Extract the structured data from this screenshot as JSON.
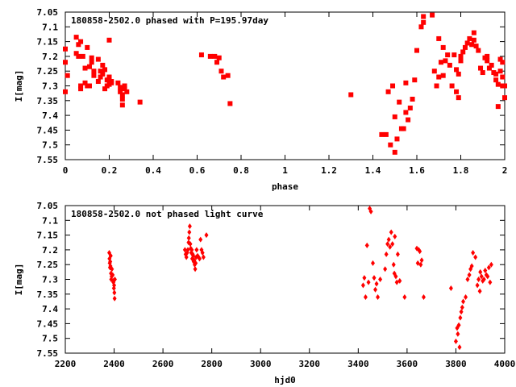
{
  "marker_color": "#ff0000",
  "chart_data": [
    {
      "type": "scatter",
      "title": "180858-2502.0 phased with P=195.97day",
      "xlabel": "phase",
      "ylabel": "I[mag]",
      "xlim": [
        0,
        2
      ],
      "ylim": [
        7.05,
        7.55
      ],
      "y_inverted": true,
      "xticks": [
        0,
        0.2,
        0.4,
        0.6,
        0.8,
        1,
        1.2,
        1.4,
        1.6,
        1.8,
        2
      ],
      "xtick_labels": [
        "0",
        "0.2",
        "0.4",
        "0.6",
        "0.8",
        "1",
        "1.2",
        "1.4",
        "1.6",
        "1.8",
        "2"
      ],
      "yticks": [
        7.05,
        7.1,
        7.15,
        7.2,
        7.25,
        7.3,
        7.35,
        7.4,
        7.45,
        7.5,
        7.55
      ],
      "ytick_labels": [
        "7.05",
        "7.1",
        "7.15",
        "7.2",
        "7.25",
        "7.3",
        "7.35",
        "7.4",
        "7.45",
        "7.5",
        "7.55"
      ],
      "marker": "square",
      "points": [
        [
          0.0,
          7.32
        ],
        [
          0.0,
          7.22
        ],
        [
          0.0,
          7.175
        ],
        [
          0.01,
          7.265
        ],
        [
          0.05,
          7.135
        ],
        [
          0.05,
          7.19
        ],
        [
          0.06,
          7.16
        ],
        [
          0.06,
          7.2
        ],
        [
          0.07,
          7.15
        ],
        [
          0.07,
          7.31
        ],
        [
          0.07,
          7.3
        ],
        [
          0.08,
          7.2
        ],
        [
          0.09,
          7.29
        ],
        [
          0.09,
          7.24
        ],
        [
          0.1,
          7.3
        ],
        [
          0.1,
          7.17
        ],
        [
          0.11,
          7.3
        ],
        [
          0.11,
          7.235
        ],
        [
          0.12,
          7.22
        ],
        [
          0.12,
          7.205
        ],
        [
          0.13,
          7.265
        ],
        [
          0.13,
          7.25
        ],
        [
          0.15,
          7.285
        ],
        [
          0.15,
          7.21
        ],
        [
          0.16,
          7.27
        ],
        [
          0.16,
          7.25
        ],
        [
          0.17,
          7.26
        ],
        [
          0.17,
          7.23
        ],
        [
          0.18,
          7.31
        ],
        [
          0.18,
          7.245
        ],
        [
          0.19,
          7.3
        ],
        [
          0.19,
          7.28
        ],
        [
          0.2,
          7.295
        ],
        [
          0.2,
          7.27
        ],
        [
          0.21,
          7.29
        ],
        [
          0.21,
          7.285
        ],
        [
          0.2,
          7.145
        ],
        [
          0.24,
          7.29
        ],
        [
          0.25,
          7.305
        ],
        [
          0.25,
          7.32
        ],
        [
          0.26,
          7.33
        ],
        [
          0.26,
          7.345
        ],
        [
          0.26,
          7.365
        ],
        [
          0.27,
          7.3
        ],
        [
          0.27,
          7.31
        ],
        [
          0.28,
          7.32
        ],
        [
          0.34,
          7.355
        ],
        [
          0.62,
          7.195
        ],
        [
          0.66,
          7.2
        ],
        [
          0.68,
          7.2
        ],
        [
          0.69,
          7.22
        ],
        [
          0.7,
          7.205
        ],
        [
          0.71,
          7.25
        ],
        [
          0.72,
          7.27
        ],
        [
          0.74,
          7.265
        ],
        [
          0.75,
          7.36
        ],
        [
          1.3,
          7.33
        ],
        [
          1.44,
          7.465
        ],
        [
          1.46,
          7.465
        ],
        [
          1.47,
          7.32
        ],
        [
          1.48,
          7.5
        ],
        [
          1.49,
          7.3
        ],
        [
          1.5,
          7.525
        ],
        [
          1.5,
          7.405
        ],
        [
          1.51,
          7.48
        ],
        [
          1.52,
          7.355
        ],
        [
          1.53,
          7.445
        ],
        [
          1.54,
          7.445
        ],
        [
          1.55,
          7.39
        ],
        [
          1.55,
          7.29
        ],
        [
          1.56,
          7.415
        ],
        [
          1.57,
          7.375
        ],
        [
          1.58,
          7.345
        ],
        [
          1.59,
          7.28
        ],
        [
          1.6,
          7.18
        ],
        [
          1.62,
          7.1
        ],
        [
          1.63,
          7.085
        ],
        [
          1.63,
          7.065
        ],
        [
          1.67,
          7.06
        ],
        [
          1.68,
          7.25
        ],
        [
          1.69,
          7.3
        ],
        [
          1.7,
          7.14
        ],
        [
          1.7,
          7.27
        ],
        [
          1.71,
          7.22
        ],
        [
          1.72,
          7.17
        ],
        [
          1.72,
          7.265
        ],
        [
          1.73,
          7.215
        ],
        [
          1.74,
          7.195
        ],
        [
          1.75,
          7.23
        ],
        [
          1.76,
          7.3
        ],
        [
          1.77,
          7.195
        ],
        [
          1.78,
          7.32
        ],
        [
          1.78,
          7.245
        ],
        [
          1.79,
          7.26
        ],
        [
          1.79,
          7.34
        ],
        [
          1.8,
          7.2
        ],
        [
          1.8,
          7.215
        ],
        [
          1.81,
          7.185
        ],
        [
          1.82,
          7.17
        ],
        [
          1.83,
          7.155
        ],
        [
          1.84,
          7.14
        ],
        [
          1.85,
          7.16
        ],
        [
          1.86,
          7.12
        ],
        [
          1.86,
          7.145
        ],
        [
          1.87,
          7.165
        ],
        [
          1.88,
          7.18
        ],
        [
          1.89,
          7.24
        ],
        [
          1.9,
          7.255
        ],
        [
          1.91,
          7.205
        ],
        [
          1.92,
          7.2
        ],
        [
          1.92,
          7.215
        ],
        [
          1.93,
          7.24
        ],
        [
          1.94,
          7.23
        ],
        [
          1.95,
          7.255
        ],
        [
          1.96,
          7.26
        ],
        [
          1.96,
          7.28
        ],
        [
          1.97,
          7.295
        ],
        [
          1.97,
          7.37
        ],
        [
          1.98,
          7.21
        ],
        [
          1.98,
          7.25
        ],
        [
          1.99,
          7.27
        ],
        [
          1.99,
          7.3
        ],
        [
          1.99,
          7.22
        ],
        [
          2.0,
          7.34
        ],
        [
          2.0,
          7.3
        ]
      ]
    },
    {
      "type": "scatter",
      "title": "180858-2502.0 not phased light curve",
      "xlabel": "hjd0",
      "ylabel": "I[mag]",
      "xlim": [
        2200,
        4000
      ],
      "ylim": [
        7.05,
        7.55
      ],
      "y_inverted": true,
      "xticks": [
        2200,
        2400,
        2600,
        2800,
        3000,
        3200,
        3400,
        3600,
        3800,
        4000
      ],
      "xtick_labels": [
        "2200",
        "2400",
        "2600",
        "2800",
        "3000",
        "3200",
        "3400",
        "3600",
        "3800",
        "4000"
      ],
      "yticks": [
        7.05,
        7.1,
        7.15,
        7.2,
        7.25,
        7.3,
        7.35,
        7.4,
        7.45,
        7.5,
        7.55
      ],
      "ytick_labels": [
        "7.05",
        "7.1",
        "7.15",
        "7.2",
        "7.25",
        "7.3",
        "7.35",
        "7.4",
        "7.45",
        "7.5",
        "7.55"
      ],
      "marker": "diamond",
      "points": [
        [
          2380,
          7.21
        ],
        [
          2381,
          7.23
        ],
        [
          2382,
          7.245
        ],
        [
          2383,
          7.26
        ],
        [
          2384,
          7.24
        ],
        [
          2385,
          7.255
        ],
        [
          2386,
          7.22
        ],
        [
          2387,
          7.28
        ],
        [
          2388,
          7.3
        ],
        [
          2390,
          7.29
        ],
        [
          2391,
          7.265
        ],
        [
          2394,
          7.285
        ],
        [
          2396,
          7.305
        ],
        [
          2397,
          7.31
        ],
        [
          2399,
          7.33
        ],
        [
          2400,
          7.32
        ],
        [
          2401,
          7.345
        ],
        [
          2402,
          7.365
        ],
        [
          2403,
          7.3
        ],
        [
          2690,
          7.2
        ],
        [
          2693,
          7.215
        ],
        [
          2696,
          7.225
        ],
        [
          2699,
          7.21
        ],
        [
          2702,
          7.2
        ],
        [
          2705,
          7.175
        ],
        [
          2706,
          7.16
        ],
        [
          2708,
          7.14
        ],
        [
          2710,
          7.12
        ],
        [
          2712,
          7.18
        ],
        [
          2714,
          7.195
        ],
        [
          2716,
          7.21
        ],
        [
          2718,
          7.2
        ],
        [
          2720,
          7.23
        ],
        [
          2722,
          7.215
        ],
        [
          2724,
          7.22
        ],
        [
          2726,
          7.24
        ],
        [
          2728,
          7.235
        ],
        [
          2730,
          7.25
        ],
        [
          2732,
          7.265
        ],
        [
          2734,
          7.245
        ],
        [
          2736,
          7.225
        ],
        [
          2738,
          7.2
        ],
        [
          2742,
          7.22
        ],
        [
          2746,
          7.225
        ],
        [
          2750,
          7.23
        ],
        [
          2754,
          7.165
        ],
        [
          2758,
          7.2
        ],
        [
          2762,
          7.21
        ],
        [
          2766,
          7.225
        ],
        [
          2778,
          7.15
        ],
        [
          3420,
          7.32
        ],
        [
          3425,
          7.295
        ],
        [
          3430,
          7.36
        ],
        [
          3436,
          7.185
        ],
        [
          3442,
          7.31
        ],
        [
          3447,
          7.06
        ],
        [
          3452,
          7.07
        ],
        [
          3460,
          7.245
        ],
        [
          3465,
          7.295
        ],
        [
          3470,
          7.335
        ],
        [
          3475,
          7.315
        ],
        [
          3480,
          7.36
        ],
        [
          3490,
          7.3
        ],
        [
          3510,
          7.265
        ],
        [
          3515,
          7.215
        ],
        [
          3520,
          7.18
        ],
        [
          3525,
          7.165
        ],
        [
          3530,
          7.19
        ],
        [
          3535,
          7.14
        ],
        [
          3540,
          7.18
        ],
        [
          3545,
          7.25
        ],
        [
          3548,
          7.28
        ],
        [
          3550,
          7.155
        ],
        [
          3554,
          7.29
        ],
        [
          3558,
          7.31
        ],
        [
          3562,
          7.215
        ],
        [
          3570,
          7.305
        ],
        [
          3590,
          7.36
        ],
        [
          3640,
          7.195
        ],
        [
          3644,
          7.245
        ],
        [
          3648,
          7.2
        ],
        [
          3652,
          7.205
        ],
        [
          3656,
          7.25
        ],
        [
          3660,
          7.235
        ],
        [
          3668,
          7.36
        ],
        [
          3780,
          7.33
        ],
        [
          3800,
          7.51
        ],
        [
          3805,
          7.465
        ],
        [
          3808,
          7.485
        ],
        [
          3812,
          7.455
        ],
        [
          3815,
          7.53
        ],
        [
          3818,
          7.43
        ],
        [
          3822,
          7.41
        ],
        [
          3826,
          7.395
        ],
        [
          3830,
          7.375
        ],
        [
          3840,
          7.36
        ],
        [
          3848,
          7.3
        ],
        [
          3855,
          7.285
        ],
        [
          3860,
          7.265
        ],
        [
          3865,
          7.255
        ],
        [
          3870,
          7.21
        ],
        [
          3880,
          7.225
        ],
        [
          3888,
          7.32
        ],
        [
          3893,
          7.3
        ],
        [
          3898,
          7.34
        ],
        [
          3900,
          7.275
        ],
        [
          3905,
          7.29
        ],
        [
          3910,
          7.305
        ],
        [
          3915,
          7.3
        ],
        [
          3920,
          7.27
        ],
        [
          3925,
          7.285
        ],
        [
          3930,
          7.29
        ],
        [
          3935,
          7.26
        ],
        [
          3940,
          7.31
        ],
        [
          3945,
          7.25
        ]
      ]
    }
  ]
}
